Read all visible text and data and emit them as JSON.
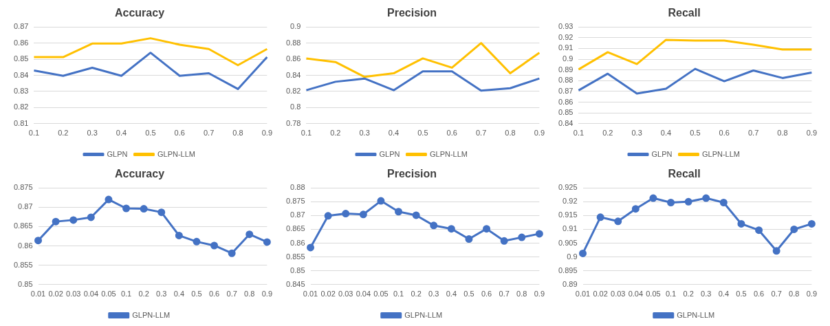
{
  "chart_data": [
    {
      "type": "line",
      "title": "Accuracy",
      "categories": [
        "0.1",
        "0.2",
        "0.3",
        "0.4",
        "0.5",
        "0.6",
        "0.7",
        "0.8",
        "0.9"
      ],
      "ylim": [
        0.81,
        0.87
      ],
      "yticks": [
        0.81,
        0.82,
        0.83,
        0.84,
        0.85,
        0.86,
        0.87
      ],
      "grid": "y",
      "legend": "bottom",
      "marker": "none",
      "series": [
        {
          "name": "GLPN",
          "color": "#4472c4",
          "values": [
            0.843,
            0.8397,
            0.8447,
            0.8397,
            0.854,
            0.8397,
            0.8413,
            0.8315,
            0.8513
          ]
        },
        {
          "name": "GLPN-LLM",
          "color": "#ffc000",
          "values": [
            0.8513,
            0.8513,
            0.8597,
            0.8597,
            0.863,
            0.859,
            0.8563,
            0.8463,
            0.8563
          ]
        }
      ]
    },
    {
      "type": "line",
      "title": "Precision",
      "categories": [
        "0.1",
        "0.2",
        "0.3",
        "0.4",
        "0.5",
        "0.6",
        "0.7",
        "0.8",
        "0.9"
      ],
      "ylim": [
        0.78,
        0.9
      ],
      "yticks": [
        0.78,
        0.8,
        0.82,
        0.84,
        0.86,
        0.88,
        0.9
      ],
      "grid": "y",
      "legend": "bottom",
      "marker": "none",
      "series": [
        {
          "name": "GLPN",
          "color": "#4472c4",
          "values": [
            0.8215,
            0.832,
            0.836,
            0.8215,
            0.845,
            0.845,
            0.821,
            0.824,
            0.836
          ]
        },
        {
          "name": "GLPN-LLM",
          "color": "#ffc000",
          "values": [
            0.861,
            0.8565,
            0.838,
            0.8425,
            0.861,
            0.8495,
            0.88,
            0.8425,
            0.868
          ]
        }
      ]
    },
    {
      "type": "line",
      "title": "Recall",
      "categories": [
        "0.1",
        "0.2",
        "0.3",
        "0.4",
        "0.5",
        "0.6",
        "0.7",
        "0.8",
        "0.9"
      ],
      "ylim": [
        0.84,
        0.93
      ],
      "yticks": [
        0.84,
        0.85,
        0.86,
        0.87,
        0.88,
        0.89,
        0.9,
        0.91,
        0.92,
        0.93
      ],
      "grid": "y",
      "legend": "bottom",
      "marker": "none",
      "series": [
        {
          "name": "GLPN",
          "color": "#4472c4",
          "values": [
            0.871,
            0.8865,
            0.868,
            0.8725,
            0.891,
            0.8795,
            0.8895,
            0.8825,
            0.8875
          ]
        },
        {
          "name": "GLPN-LLM",
          "color": "#ffc000",
          "values": [
            0.8905,
            0.9065,
            0.8955,
            0.918,
            0.9173,
            0.9173,
            0.9135,
            0.909,
            0.909
          ]
        }
      ]
    },
    {
      "type": "line",
      "title": "Accuracy",
      "categories": [
        "0.01",
        "0.02",
        "0.03",
        "0.04",
        "0.05",
        "0.1",
        "0.2",
        "0.3",
        "0.4",
        "0.5",
        "0.6",
        "0.7",
        "0.8",
        "0.9"
      ],
      "ylim": [
        0.85,
        0.875
      ],
      "yticks": [
        0.85,
        0.855,
        0.86,
        0.865,
        0.87,
        0.875
      ],
      "grid": "y",
      "legend": "bottom",
      "marker": "circle",
      "series": [
        {
          "name": "GLPN-LLM",
          "color": "#4472c4",
          "values": [
            0.8614,
            0.8663,
            0.8667,
            0.8674,
            0.872,
            0.8697,
            0.8696,
            0.8687,
            0.8627,
            0.8611,
            0.8601,
            0.8581,
            0.863,
            0.861
          ]
        }
      ]
    },
    {
      "type": "line",
      "title": "Precision",
      "categories": [
        "0.01",
        "0.02",
        "0.03",
        "0.04",
        "0.05",
        "0.1",
        "0.2",
        "0.3",
        "0.4",
        "0.5",
        "0.6",
        "0.7",
        "0.8",
        "0.9"
      ],
      "ylim": [
        0.845,
        0.88
      ],
      "yticks": [
        0.845,
        0.85,
        0.855,
        0.86,
        0.865,
        0.87,
        0.875,
        0.88
      ],
      "grid": "y",
      "legend": "bottom",
      "marker": "circle",
      "series": [
        {
          "name": "GLPN-LLM",
          "color": "#4472c4",
          "values": [
            0.8584,
            0.8699,
            0.8707,
            0.8704,
            0.8753,
            0.8714,
            0.8701,
            0.8664,
            0.8652,
            0.8615,
            0.8652,
            0.8608,
            0.8621,
            0.8634
          ]
        }
      ]
    },
    {
      "type": "line",
      "title": "Recall",
      "categories": [
        "0.01",
        "0.02",
        "0.03",
        "0.04",
        "0.05",
        "0.1",
        "0.2",
        "0.3",
        "0.4",
        "0.5",
        "0.6",
        "0.7",
        "0.8",
        "0.9"
      ],
      "ylim": [
        0.89,
        0.925
      ],
      "yticks": [
        0.89,
        0.895,
        0.9,
        0.905,
        0.91,
        0.915,
        0.92,
        0.925
      ],
      "grid": "y",
      "legend": "bottom",
      "marker": "circle",
      "series": [
        {
          "name": "GLPN-LLM",
          "color": "#4472c4",
          "values": [
            0.9013,
            0.9144,
            0.9129,
            0.9174,
            0.9213,
            0.9197,
            0.92,
            0.9213,
            0.9197,
            0.912,
            0.9097,
            0.9022,
            0.91,
            0.912
          ]
        }
      ]
    }
  ]
}
